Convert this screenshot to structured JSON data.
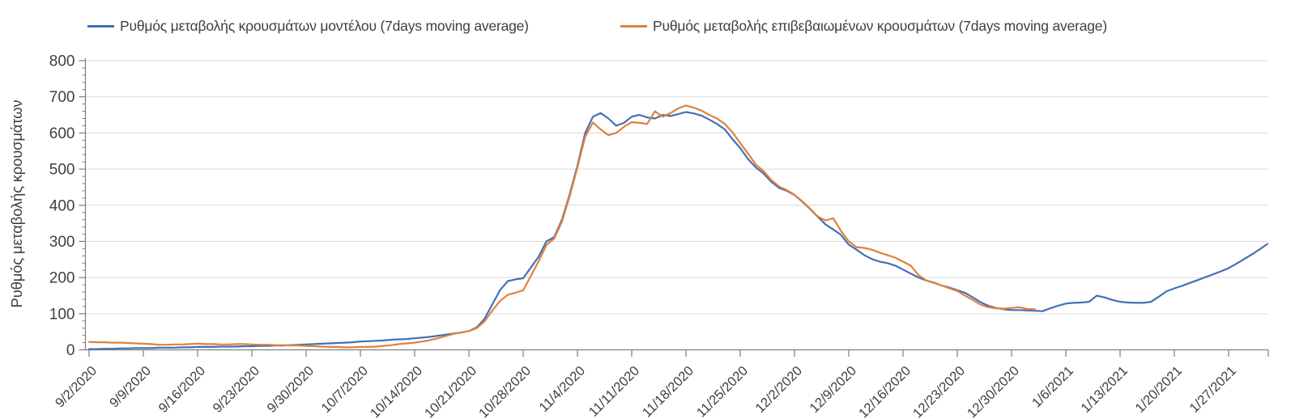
{
  "chart_data": {
    "type": "line",
    "title": "",
    "xlabel": "",
    "ylabel": "Ρυθμός μεταβολής κρουσμάτων",
    "ylim": [
      0,
      800
    ],
    "y_ticks": [
      0,
      100,
      200,
      300,
      400,
      500,
      600,
      700,
      800
    ],
    "y_minor_tick_step": 20,
    "grid": "horizontal-only",
    "legend_position": "top",
    "x_unit": "day",
    "x_start": "9/2/2020",
    "x_tick_every_days": 7,
    "x_tick_labels": [
      "9/2/2020",
      "9/9/2020",
      "9/16/2020",
      "9/23/2020",
      "9/30/2020",
      "10/7/2020",
      "10/14/2020",
      "10/21/2020",
      "10/28/2020",
      "11/4/2020",
      "11/11/2020",
      "11/18/2020",
      "11/25/2020",
      "12/2/2020",
      "12/9/2020",
      "12/16/2020",
      "12/23/2020",
      "12/30/2020",
      "1/6/2021",
      "1/13/2021",
      "1/20/2021",
      "1/27/2021"
    ],
    "series": [
      {
        "name": "Ρυθμός μεταβολής κρουσμάτων μοντέλου (7days moving average)",
        "color": "#4370b4",
        "start_day_index": 0,
        "values": [
          2,
          2,
          3,
          3,
          4,
          4,
          5,
          5,
          5,
          6,
          6,
          6,
          7,
          7,
          8,
          8,
          8,
          9,
          9,
          9,
          10,
          10,
          11,
          11,
          12,
          12,
          13,
          14,
          15,
          16,
          17,
          18,
          19,
          20,
          21,
          23,
          24,
          25,
          26,
          28,
          29,
          30,
          32,
          34,
          36,
          39,
          42,
          45,
          48,
          52,
          62,
          85,
          125,
          165,
          190,
          195,
          198,
          228,
          258,
          300,
          312,
          360,
          430,
          510,
          600,
          645,
          655,
          640,
          620,
          628,
          645,
          650,
          643,
          640,
          650,
          647,
          652,
          658,
          654,
          648,
          637,
          625,
          610,
          583,
          558,
          528,
          505,
          488,
          465,
          448,
          440,
          428,
          410,
          390,
          368,
          347,
          333,
          318,
          291,
          277,
          262,
          251,
          244,
          240,
          233,
          222,
          211,
          200,
          192,
          186,
          178,
          172,
          165,
          158,
          145,
          132,
          122,
          116,
          112,
          110,
          110,
          109,
          108,
          107,
          115,
          122,
          128,
          130,
          131,
          133,
          150,
          145,
          138,
          133,
          131,
          130,
          130,
          133,
          147,
          162,
          170,
          177,
          185,
          193,
          201,
          209,
          217,
          226,
          238,
          251,
          264,
          278,
          293
        ]
      },
      {
        "name": "Ρυθμός μεταβολής επιβεβαιωμένων κρουσμάτων (7days moving average)",
        "color": "#e1813c",
        "start_day_index": 0,
        "values": [
          22,
          21,
          21,
          20,
          20,
          19,
          18,
          17,
          16,
          14,
          14,
          15,
          15,
          16,
          17,
          16,
          16,
          15,
          15,
          16,
          16,
          15,
          14,
          14,
          13,
          13,
          12,
          12,
          11,
          10,
          9,
          8,
          8,
          7,
          7,
          8,
          8,
          9,
          11,
          13,
          16,
          18,
          20,
          23,
          27,
          32,
          38,
          44,
          48,
          52,
          60,
          78,
          108,
          135,
          152,
          158,
          165,
          205,
          245,
          290,
          308,
          355,
          425,
          505,
          590,
          629,
          610,
          594,
          600,
          617,
          630,
          628,
          625,
          660,
          645,
          655,
          668,
          676,
          670,
          662,
          650,
          640,
          625,
          602,
          572,
          543,
          513,
          495,
          470,
          452,
          442,
          429,
          411,
          391,
          369,
          358,
          364,
          329,
          300,
          284,
          282,
          277,
          269,
          262,
          255,
          244,
          233,
          207,
          192,
          185,
          178,
          170,
          163,
          150,
          138,
          125,
          118,
          115,
          114,
          116,
          118,
          113,
          112
        ]
      }
    ]
  },
  "colors": {
    "background": "#ffffff",
    "gridline": "#d9d9d9",
    "axis": "#7f7f7f",
    "tick_text": "#3f3f3f"
  }
}
